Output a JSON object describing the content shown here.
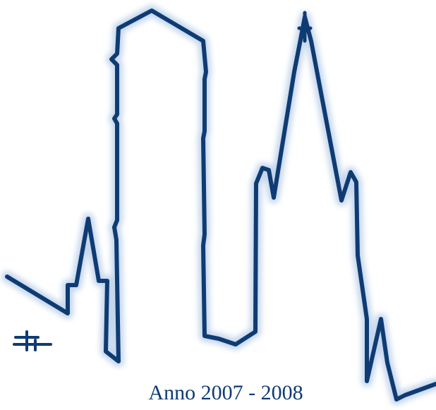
{
  "caption": {
    "text": "Anno 2007 - 2008"
  },
  "colors": {
    "outline": "#0f3b73",
    "glow": "#7fa6d6",
    "caption_text": "#0f3b73",
    "background": "#ffffff"
  },
  "artwork": {
    "icon": "skyline-outline-icon",
    "mark_icon": "monogram-mark-icon"
  }
}
